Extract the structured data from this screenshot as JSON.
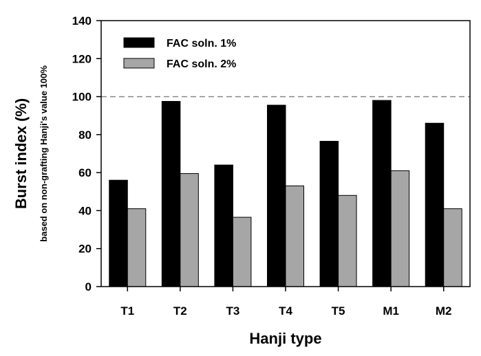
{
  "chart_data": {
    "type": "bar",
    "categories": [
      "T1",
      "T2",
      "T3",
      "T4",
      "T5",
      "M1",
      "M2"
    ],
    "series": [
      {
        "name": "FAC soln. 1%",
        "values": [
          56,
          97.5,
          64,
          95.5,
          76.5,
          98,
          86
        ],
        "color": "#000000"
      },
      {
        "name": "FAC soln. 2%",
        "values": [
          41,
          59.5,
          36.5,
          53,
          48,
          61,
          41
        ],
        "color": "#a6a6a6"
      }
    ],
    "title": "",
    "xlabel": "Hanji type",
    "ylabel": "Burst index (%)",
    "ylabel_sub": "based on non-grafting Hanji's value 100%",
    "ylim": [
      0,
      140
    ],
    "yticks": [
      "0",
      "20",
      "40",
      "60",
      "80",
      "100",
      "120",
      "140"
    ],
    "reference_line": {
      "value": 100,
      "style": "dashed",
      "color": "#888888"
    },
    "legend_position": "top-left",
    "grid": false
  }
}
